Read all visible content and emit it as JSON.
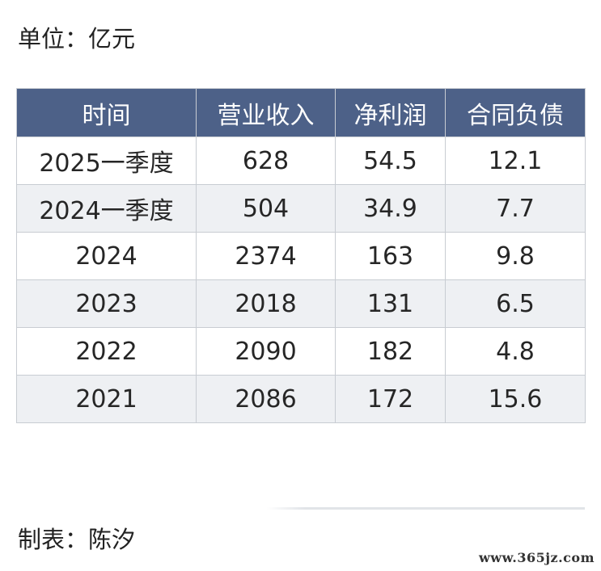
{
  "unit_label": "单位：亿元",
  "table": {
    "headers": [
      "时间",
      "营业收入",
      "净利润",
      "合同负债"
    ],
    "rows": [
      [
        "2025一季度",
        "628",
        "54.5",
        "12.1"
      ],
      [
        "2024一季度",
        "504",
        "34.9",
        "7.7"
      ],
      [
        "2024",
        "2374",
        "163",
        "9.8"
      ],
      [
        "2023",
        "2018",
        "131",
        "6.5"
      ],
      [
        "2022",
        "2090",
        "182",
        "4.8"
      ],
      [
        "2021",
        "2086",
        "172",
        "15.6"
      ]
    ]
  },
  "footer": {
    "author_label": "制表：陈汐"
  },
  "watermark": "www.365jz.com",
  "colors": {
    "header_bg": "#4d6188",
    "header_text": "#ffffff",
    "alt_row_bg": "#eef0f3",
    "border": "#c8ccd2"
  }
}
